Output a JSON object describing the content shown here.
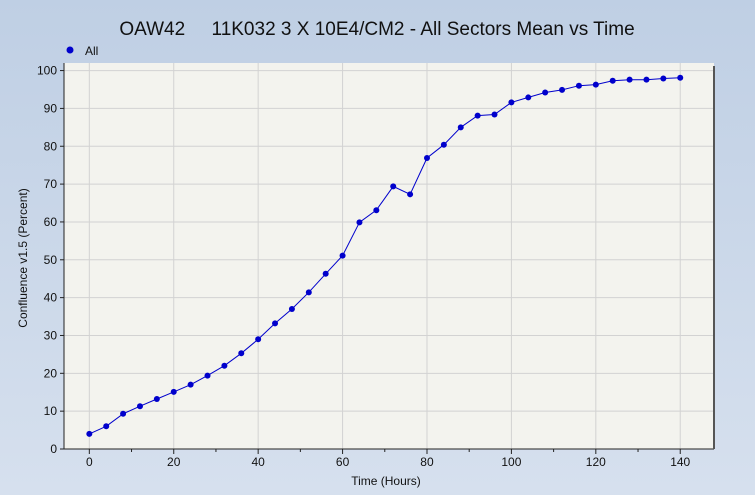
{
  "chart_data": {
    "type": "line",
    "title": "OAW42     11K032 3 X 10E4/CM2 - All Sectors Mean vs Time",
    "xlabel": "Time (Hours)",
    "ylabel": "Confluence v1.5 (Percent)",
    "xlim": [
      -6,
      148
    ],
    "ylim": [
      0,
      102
    ],
    "xticks": [
      0,
      20,
      40,
      60,
      80,
      100,
      120,
      140
    ],
    "yticks": [
      0,
      10,
      20,
      30,
      40,
      50,
      60,
      70,
      80,
      90,
      100
    ],
    "grid": true,
    "legend_position": "top-left",
    "series": [
      {
        "name": "All",
        "color": "#0000cc",
        "x": [
          0,
          4,
          8,
          12,
          16,
          20,
          24,
          28,
          32,
          36,
          40,
          44,
          48,
          52,
          56,
          60,
          64,
          68,
          72,
          76,
          80,
          84,
          88,
          92,
          96,
          100,
          104,
          108,
          112,
          116,
          120,
          124,
          128,
          132,
          136,
          140
        ],
        "y": [
          4.0,
          6.0,
          9.3,
          11.3,
          13.2,
          15.1,
          17.0,
          19.4,
          22.0,
          25.3,
          29.0,
          33.2,
          37.0,
          41.4,
          46.3,
          51.1,
          59.9,
          63.1,
          69.4,
          67.3,
          76.9,
          80.4,
          85.0,
          88.1,
          88.4,
          91.6,
          92.9,
          94.2,
          94.9,
          96.0,
          96.3,
          97.3,
          97.6,
          97.6,
          97.9,
          98.1
        ]
      }
    ]
  }
}
